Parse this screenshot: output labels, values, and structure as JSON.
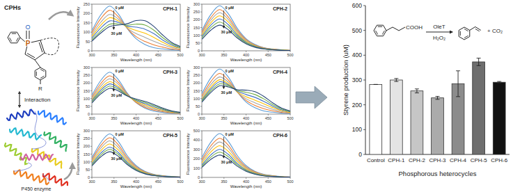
{
  "chart_data": [
    {
      "type": "line",
      "title": "CPH-1",
      "x_label": "Wavelength (nm)",
      "y_label": "Fluorescence Intensity",
      "x": [
        300,
        320,
        340,
        360,
        380,
        400,
        420,
        440,
        460,
        480,
        500
      ],
      "xlim": [
        300,
        500
      ],
      "xticks": [
        300,
        350,
        400,
        450,
        500
      ],
      "ylim": [
        0,
        250
      ],
      "yticks": [
        0,
        50,
        100,
        150,
        200,
        250
      ],
      "annotations": [
        "0 μM",
        "30 μM"
      ],
      "series": [
        {
          "color": "#5b9bd5",
          "values": [
            108,
            192,
            240,
            197,
            120,
            65,
            34,
            17,
            10,
            5,
            2
          ]
        },
        {
          "color": "#ed7d31",
          "values": [
            97,
            172,
            217,
            182,
            120,
            76,
            50,
            32,
            20,
            10,
            5
          ]
        },
        {
          "color": "#a5a5a5",
          "values": [
            86,
            153,
            195,
            170,
            122,
            92,
            72,
            51,
            33,
            18,
            9
          ]
        },
        {
          "color": "#ffc000",
          "values": [
            77,
            137,
            177,
            160,
            127,
            109,
            94,
            72,
            46,
            24,
            13
          ]
        },
        {
          "color": "#4472c4",
          "values": [
            68,
            122,
            160,
            152,
            132,
            127,
            116,
            92,
            58,
            32,
            16
          ]
        },
        {
          "color": "#70ad47",
          "values": [
            59,
            106,
            142,
            143,
            137,
            143,
            138,
            111,
            71,
            39,
            19
          ]
        },
        {
          "color": "#264478",
          "values": [
            52,
            95,
            130,
            138,
            145,
            162,
            161,
            131,
            85,
            46,
            23
          ]
        }
      ]
    },
    {
      "type": "line",
      "title": "CPH-2",
      "x_label": "Wavelength (nm)",
      "y_label": "Fluorescence Intensity",
      "x": [
        300,
        320,
        340,
        360,
        380,
        400,
        420,
        440,
        460,
        480,
        500
      ],
      "xlim": [
        300,
        500
      ],
      "xticks": [
        300,
        350,
        400,
        450,
        500
      ],
      "ylim": [
        0,
        300
      ],
      "yticks": [
        0,
        50,
        100,
        150,
        200,
        250,
        300
      ],
      "annotations": [
        "0 μM",
        "30 μM"
      ],
      "series": [
        {
          "color": "#5b9bd5",
          "values": [
            131,
            232,
            290,
            238,
            145,
            78,
            41,
            20,
            12,
            6,
            3
          ]
        },
        {
          "color": "#ed7d31",
          "values": [
            119,
            212,
            265,
            217,
            133,
            72,
            37,
            19,
            11,
            5,
            3
          ]
        },
        {
          "color": "#a5a5a5",
          "values": [
            110,
            196,
            245,
            201,
            123,
            66,
            34,
            17,
            10,
            5,
            2
          ]
        },
        {
          "color": "#ffc000",
          "values": [
            101,
            180,
            225,
            185,
            113,
            61,
            32,
            16,
            9,
            5,
            2
          ]
        },
        {
          "color": "#4472c4",
          "values": [
            92,
            164,
            205,
            168,
            103,
            55,
            29,
            14,
            8,
            4,
            2
          ]
        },
        {
          "color": "#70ad47",
          "values": [
            83,
            148,
            185,
            152,
            93,
            50,
            26,
            13,
            7,
            4,
            2
          ]
        },
        {
          "color": "#264478",
          "values": [
            74,
            132,
            165,
            135,
            83,
            45,
            23,
            12,
            7,
            3,
            2
          ]
        }
      ]
    },
    {
      "type": "line",
      "title": "CPH-3",
      "x_label": "Wavelength (nm)",
      "y_label": "Fluorescence Intensity",
      "x": [
        300,
        320,
        340,
        360,
        380,
        400,
        420,
        440,
        460,
        480,
        500
      ],
      "xlim": [
        300,
        500
      ],
      "xticks": [
        300,
        350,
        400,
        450,
        500
      ],
      "ylim": [
        0,
        300
      ],
      "yticks": [
        0,
        50,
        100,
        150,
        200,
        250,
        300
      ],
      "annotations": [
        "0 μM",
        "30 μM"
      ],
      "series": [
        {
          "color": "#5b9bd5",
          "values": [
            122,
            216,
            270,
            221,
            135,
            73,
            38,
            19,
            11,
            5,
            3
          ]
        },
        {
          "color": "#ed7d31",
          "values": [
            110,
            196,
            246,
            204,
            129,
            75,
            44,
            26,
            16,
            8,
            4
          ]
        },
        {
          "color": "#a5a5a5",
          "values": [
            101,
            180,
            227,
            191,
            125,
            79,
            52,
            33,
            20,
            11,
            5
          ]
        },
        {
          "color": "#ffc000",
          "values": [
            92,
            165,
            208,
            177,
            121,
            82,
            59,
            40,
            25,
            13,
            7
          ]
        },
        {
          "color": "#4472c4",
          "values": [
            86,
            153,
            194,
            168,
            119,
            87,
            67,
            47,
            30,
            16,
            8
          ]
        },
        {
          "color": "#70ad47",
          "values": [
            79,
            141,
            180,
            159,
            118,
            92,
            75,
            55,
            35,
            19,
            10
          ]
        },
        {
          "color": "#264478",
          "values": [
            72,
            129,
            166,
            149,
            116,
            97,
            82,
            62,
            39,
            21,
            11
          ]
        }
      ]
    },
    {
      "type": "line",
      "title": "CPH-4",
      "x_label": "Wavelength (nm)",
      "y_label": "Fluorescence Intensity",
      "x": [
        300,
        320,
        340,
        360,
        380,
        400,
        420,
        440,
        460,
        480,
        500
      ],
      "xlim": [
        300,
        500
      ],
      "xticks": [
        300,
        350,
        400,
        450,
        500
      ],
      "ylim": [
        0,
        300
      ],
      "yticks": [
        0,
        50,
        100,
        150,
        200,
        250,
        300
      ],
      "annotations": [
        "0 μM",
        "30 μM"
      ],
      "series": [
        {
          "color": "#5b9bd5",
          "values": [
            131,
            232,
            290,
            238,
            145,
            78,
            41,
            20,
            12,
            6,
            3
          ]
        },
        {
          "color": "#ed7d31",
          "values": [
            117,
            208,
            262,
            219,
            142,
            88,
            56,
            35,
            21,
            11,
            6
          ]
        },
        {
          "color": "#a5a5a5",
          "values": [
            106,
            189,
            239,
            205,
            142,
            99,
            73,
            50,
            31,
            17,
            8
          ]
        },
        {
          "color": "#ffc000",
          "values": [
            97,
            173,
            221,
            194,
            144,
            112,
            90,
            66,
            42,
            22,
            11
          ]
        },
        {
          "color": "#4472c4",
          "values": [
            90,
            162,
            208,
            188,
            148,
            126,
            108,
            82,
            52,
            28,
            14
          ]
        },
        {
          "color": "#70ad47",
          "values": [
            83,
            150,
            195,
            182,
            153,
            140,
            126,
            98,
            62,
            34,
            17
          ]
        },
        {
          "color": "#264478",
          "values": [
            77,
            138,
            182,
            175,
            157,
            154,
            144,
            114,
            73,
            39,
            20
          ]
        }
      ]
    },
    {
      "type": "line",
      "title": "CPH-5",
      "x_label": "Wavelength (nm)",
      "y_label": "Fluorescence Intensity",
      "x": [
        300,
        320,
        340,
        360,
        380,
        400,
        420,
        440,
        460,
        480,
        500
      ],
      "xlim": [
        300,
        500
      ],
      "xticks": [
        300,
        350,
        400,
        450,
        500
      ],
      "ylim": [
        0,
        300
      ],
      "yticks": [
        0,
        50,
        100,
        150,
        200,
        250,
        300
      ],
      "annotations": [
        "0 μM",
        "30 μM"
      ],
      "series": [
        {
          "color": "#5b9bd5",
          "values": [
            126,
            224,
            280,
            230,
            140,
            76,
            39,
            20,
            11,
            6,
            3
          ]
        },
        {
          "color": "#ed7d31",
          "values": [
            115,
            204,
            255,
            209,
            128,
            69,
            36,
            18,
            10,
            5,
            3
          ]
        },
        {
          "color": "#a5a5a5",
          "values": [
            106,
            188,
            235,
            193,
            118,
            63,
            33,
            16,
            9,
            5,
            2
          ]
        },
        {
          "color": "#ffc000",
          "values": [
            97,
            172,
            215,
            176,
            108,
            58,
            30,
            15,
            9,
            4,
            2
          ]
        },
        {
          "color": "#4472c4",
          "values": [
            88,
            156,
            195,
            160,
            98,
            53,
            27,
            14,
            8,
            4,
            2
          ]
        },
        {
          "color": "#70ad47",
          "values": [
            81,
            144,
            180,
            148,
            90,
            49,
            25,
            13,
            7,
            4,
            2
          ]
        },
        {
          "color": "#264478",
          "values": [
            74,
            132,
            165,
            135,
            83,
            45,
            23,
            12,
            7,
            3,
            2
          ]
        }
      ]
    },
    {
      "type": "line",
      "title": "CPH-6",
      "x_label": "Wavelength (nm)",
      "y_label": "Fluorescence Intensity",
      "x": [
        300,
        320,
        340,
        360,
        380,
        400,
        420,
        440,
        460,
        480,
        500
      ],
      "xlim": [
        300,
        500
      ],
      "xticks": [
        300,
        350,
        400,
        450,
        500
      ],
      "ylim": [
        0,
        500
      ],
      "yticks": [
        0,
        100,
        200,
        300,
        400,
        500
      ],
      "annotations": [
        "0 μM",
        "30 μM"
      ],
      "series": [
        {
          "color": "#5b9bd5",
          "values": [
            212,
            376,
            470,
            385,
            235,
            127,
            66,
            33,
            19,
            9,
            5
          ]
        },
        {
          "color": "#ed7d31",
          "values": [
            189,
            336,
            420,
            344,
            210,
            113,
            59,
            29,
            17,
            8,
            4
          ]
        },
        {
          "color": "#a5a5a5",
          "values": [
            171,
            304,
            380,
            312,
            190,
            103,
            53,
            27,
            15,
            8,
            4
          ]
        },
        {
          "color": "#ffc000",
          "values": [
            153,
            272,
            340,
            279,
            170,
            92,
            48,
            24,
            14,
            7,
            3
          ]
        },
        {
          "color": "#4472c4",
          "values": [
            135,
            240,
            300,
            246,
            150,
            81,
            42,
            21,
            12,
            6,
            3
          ]
        },
        {
          "color": "#70ad47",
          "values": [
            122,
            216,
            270,
            221,
            135,
            73,
            38,
            19,
            11,
            5,
            3
          ]
        },
        {
          "color": "#264478",
          "values": [
            108,
            192,
            240,
            197,
            120,
            65,
            34,
            17,
            10,
            5,
            2
          ]
        }
      ]
    },
    {
      "type": "bar",
      "x_label": "Phosphorous heterocycles",
      "y_label": "Styrene production (uM)",
      "categories": [
        "Control",
        "CPH-1",
        "CPH-2",
        "CPH-3",
        "CPH-4",
        "CPH-5",
        "CPH-6"
      ],
      "values": [
        282,
        300,
        256,
        228,
        285,
        373,
        291
      ],
      "errors": [
        0,
        6,
        8,
        6,
        52,
        15,
        3
      ],
      "colors": [
        "#ffffff",
        "#e4e4e4",
        "#c6c6c6",
        "#ababab",
        "#8c8c8c",
        "#6e6e6e",
        "#111111"
      ],
      "ylim": [
        0,
        600
      ],
      "yticks": [
        0,
        100,
        200,
        300,
        400,
        500,
        600
      ]
    }
  ],
  "diagram": {
    "label": "CPHs",
    "interaction": "Interaction",
    "enzyme": "P450 enzyme",
    "phosphorus": "P",
    "oxygen": "O",
    "substituent": "R"
  },
  "reaction": {
    "acid": "COOH",
    "enzyme": "OleT",
    "oxidant": "H₂O₂",
    "byproduct": "+ CO₂"
  }
}
